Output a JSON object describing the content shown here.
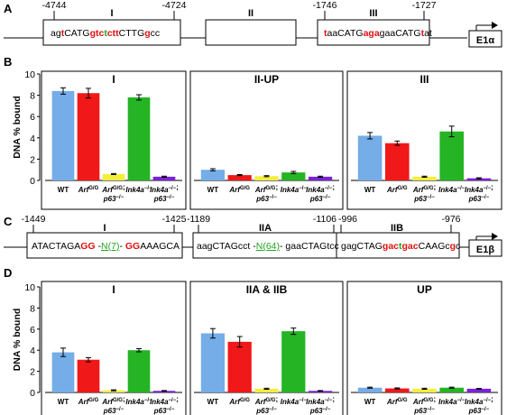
{
  "colors": {
    "series": [
      "#74ADE8",
      "#F01818",
      "#F3EE3C",
      "#24B424",
      "#7A22D6"
    ],
    "seq_red": "#E01010",
    "seq_green": "#1EA51E"
  },
  "panelA": {
    "letter": "A",
    "positions": [
      "-4744",
      "-4724",
      "-1746",
      "-1727"
    ],
    "regions": [
      "I",
      "II",
      "III"
    ],
    "seqI": [
      {
        "t": "ag",
        "c": "k"
      },
      {
        "t": "t",
        "c": "r"
      },
      {
        "t": "CATG",
        "c": "k"
      },
      {
        "t": "gtc",
        "c": "r"
      },
      {
        "t": "t",
        "c": "g"
      },
      {
        "t": "ctt",
        "c": "r"
      },
      {
        "t": "CTTG",
        "c": "k"
      },
      {
        "t": "g",
        "c": "r"
      },
      {
        "t": "cc",
        "c": "k"
      }
    ],
    "seqIII": [
      {
        "t": "t",
        "c": "r"
      },
      {
        "t": "aaCATG",
        "c": "k"
      },
      {
        "t": "aga",
        "c": "r"
      },
      {
        "t": "gaaCATG",
        "c": "k"
      },
      {
        "t": "t",
        "c": "r"
      },
      {
        "t": "at",
        "c": "k"
      }
    ],
    "gene": "E1α"
  },
  "panelC": {
    "letter": "C",
    "positions": [
      "-1449",
      "-1425",
      "-1189",
      "-1106",
      "-996",
      "-976"
    ],
    "regions": [
      "I",
      "IIA",
      "IIB"
    ],
    "seqI": [
      {
        "t": "ATACTAGA",
        "c": "k"
      },
      {
        "t": "GG",
        "c": "r"
      },
      {
        "t": " -",
        "c": "k"
      },
      {
        "t": "N(7)",
        "c": "gu"
      },
      {
        "t": "- ",
        "c": "k"
      },
      {
        "t": "GG",
        "c": "r"
      },
      {
        "t": "AAAGCA",
        "c": "k"
      }
    ],
    "seqIIA": [
      {
        "t": "aagCTAGcct -",
        "c": "k"
      },
      {
        "t": "N(64)",
        "c": "gu"
      },
      {
        "t": "- gaaCTAGtcc",
        "c": "k"
      }
    ],
    "seqIIB": [
      {
        "t": "gagCTAG",
        "c": "k"
      },
      {
        "t": "gac",
        "c": "r"
      },
      {
        "t": "t",
        "c": "g"
      },
      {
        "t": "gac",
        "c": "r"
      },
      {
        "t": "CAAGc",
        "c": "k"
      },
      {
        "t": "g",
        "c": "r"
      },
      {
        "t": "c",
        "c": "k"
      }
    ],
    "gene": "E1β"
  },
  "chart_data": [
    {
      "type": "bar",
      "panel": "B",
      "ylabel": "DNA % bound",
      "ylim": [
        0,
        10
      ],
      "yticks": [
        0,
        2,
        4,
        6,
        8,
        10
      ],
      "categories": [
        "WT",
        "Arf G/G",
        "Arf G/G; p63-/-",
        "Ink4a-/-",
        "Ink4a-/-; p63-/-"
      ],
      "subplots": [
        {
          "title": "I",
          "values": [
            8.4,
            8.2,
            0.6,
            7.8,
            0.35
          ],
          "errors": [
            0.3,
            0.45,
            0.05,
            0.25,
            0.05
          ]
        },
        {
          "title": "II-UP",
          "values": [
            1.0,
            0.5,
            0.4,
            0.75,
            0.35
          ],
          "errors": [
            0.1,
            0.05,
            0.05,
            0.1,
            0.05
          ]
        },
        {
          "title": "III",
          "values": [
            4.2,
            3.5,
            0.35,
            4.6,
            0.2
          ],
          "errors": [
            0.3,
            0.2,
            0.05,
            0.5,
            0.05
          ]
        }
      ]
    },
    {
      "type": "bar",
      "panel": "D",
      "ylabel": "DNA % bound",
      "ylim": [
        0,
        10
      ],
      "yticks": [
        0,
        2,
        4,
        6,
        8,
        10
      ],
      "categories": [
        "WT",
        "Arf G/G",
        "Arf G/G; p63-/-",
        "Ink4a-/-",
        "Ink4a-/-; p63-/-"
      ],
      "subplots": [
        {
          "title": "I",
          "values": [
            3.8,
            3.1,
            0.2,
            4.0,
            0.15
          ],
          "errors": [
            0.4,
            0.2,
            0.05,
            0.15,
            0.03
          ]
        },
        {
          "title": "IIA & IIB",
          "values": [
            5.6,
            4.8,
            0.35,
            5.8,
            0.15
          ],
          "errors": [
            0.45,
            0.5,
            0.05,
            0.3,
            0.03
          ]
        },
        {
          "title": "UP",
          "values": [
            0.45,
            0.38,
            0.35,
            0.45,
            0.35
          ],
          "errors": [
            0.05,
            0.05,
            0.05,
            0.05,
            0.03
          ]
        }
      ]
    }
  ],
  "xlabels": {
    "wt": "WT",
    "arf": "Arf",
    "arf_sup": "G/G",
    "p63": "p63",
    "p63_sup": "−/−",
    "ink": "Ink4a",
    "ink_sup": "−/−"
  }
}
